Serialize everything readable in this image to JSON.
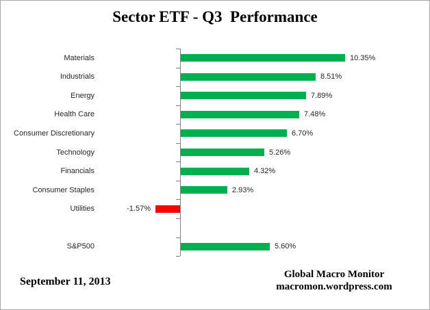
{
  "title": "Sector ETF - Q3  Performance",
  "footer": {
    "date": "September 11, 2013",
    "source_line1": "Global Macro Monitor",
    "source_line2": "macromon.wordpress.com"
  },
  "chart_data": {
    "type": "bar",
    "orientation": "horizontal",
    "title": "Sector ETF - Q3  Performance",
    "xlabel": "",
    "ylabel": "",
    "xlim": [
      -2,
      11
    ],
    "grid": false,
    "legend": false,
    "positive_color": "#00B050",
    "negative_color": "#FF0000",
    "axis_color": "#808080",
    "label_color": "#262626",
    "rows": [
      {
        "category": "Materials",
        "value": 10.35,
        "label": "10.35%"
      },
      {
        "category": "Industrials",
        "value": 8.51,
        "label": "8.51%"
      },
      {
        "category": "Energy",
        "value": 7.89,
        "label": "7.89%"
      },
      {
        "category": "Health Care",
        "value": 7.48,
        "label": "7.48%"
      },
      {
        "category": "Consumer Discretionary",
        "value": 6.7,
        "label": "6.70%"
      },
      {
        "category": "Technology",
        "value": 5.26,
        "label": "5.26%"
      },
      {
        "category": "Financials",
        "value": 4.32,
        "label": "4.32%"
      },
      {
        "category": "Consumer Staples",
        "value": 2.93,
        "label": "2.93%"
      },
      {
        "category": "Utilities",
        "value": -1.57,
        "label": "-1.57%"
      },
      {
        "category": "",
        "value": null,
        "label": ""
      },
      {
        "category": "S&P500",
        "value": 5.6,
        "label": "5.60%"
      }
    ]
  }
}
